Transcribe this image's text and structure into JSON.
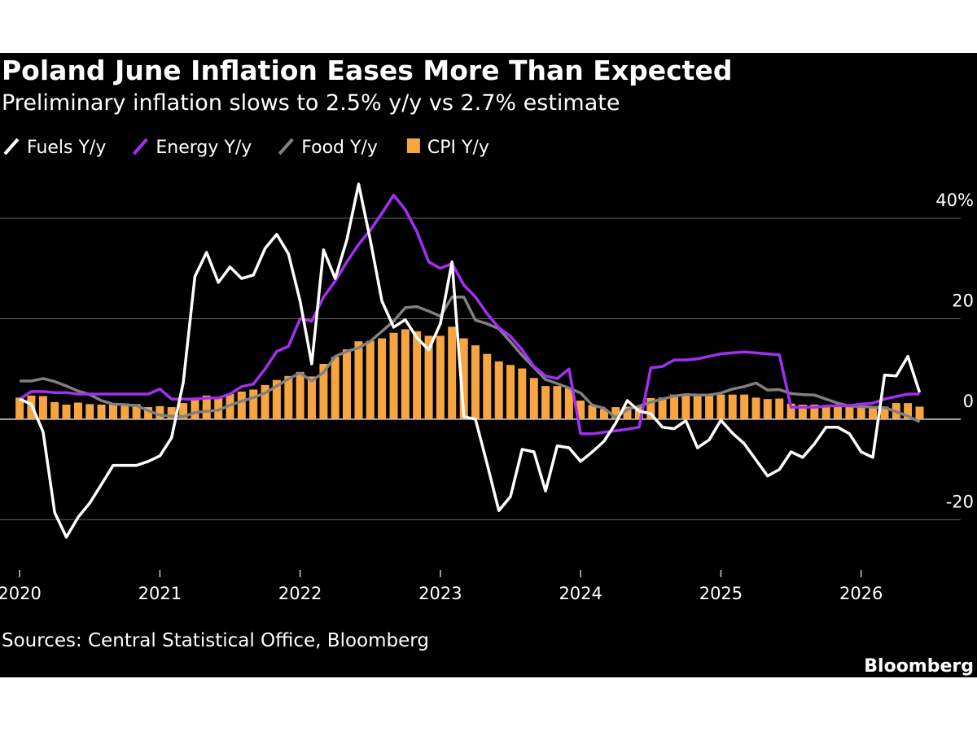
{
  "chart_data": {
    "type": "combo",
    "title": "Poland June Inflation Eases More Than Expected",
    "subtitle": "Preliminary inflation slows to 2.5% y/y vs 2.7% estimate",
    "source": "Sources: Central Statistical Office, Bloomberg",
    "brand": "Bloomberg",
    "x": [
      2020,
      2020.083,
      2020.167,
      2020.25,
      2020.333,
      2020.417,
      2020.5,
      2020.583,
      2020.667,
      2020.75,
      2020.833,
      2020.917,
      2021,
      2021.083,
      2021.167,
      2021.25,
      2021.333,
      2021.417,
      2021.5,
      2021.583,
      2021.667,
      2021.75,
      2021.833,
      2021.917,
      2022,
      2022.083,
      2022.167,
      2022.25,
      2022.333,
      2022.417,
      2022.5,
      2022.583,
      2022.667,
      2022.75,
      2022.833,
      2022.917,
      2023,
      2023.083,
      2023.167,
      2023.25,
      2023.333,
      2023.417,
      2023.5,
      2023.583,
      2023.667,
      2023.75,
      2023.833,
      2023.917,
      2024,
      2024.083,
      2024.167,
      2024.25,
      2024.333,
      2024.417,
      2024.5,
      2024.583,
      2024.667,
      2024.75,
      2024.833,
      2024.917,
      2025,
      2025.083,
      2025.167,
      2025.25,
      2025.333,
      2025.417,
      2025.5,
      2025.583,
      2025.667,
      2025.75,
      2025.833,
      2025.917,
      2026,
      2026.083,
      2026.167,
      2026.25,
      2026.333,
      2026.417
    ],
    "xlim": [
      2019.86,
      2026.71
    ],
    "xticks": [
      2020,
      2021,
      2022,
      2023,
      2024,
      2025,
      2026
    ],
    "ylim": [
      -30,
      46
    ],
    "yticks": [
      -20,
      0,
      20,
      {
        "value": 40,
        "label": "40%"
      }
    ],
    "grid": true,
    "series": [
      {
        "name": "CPI Y/y",
        "type": "bar",
        "color": "#f7a540",
        "values": [
          4.3,
          4.7,
          4.6,
          3.4,
          2.9,
          3.3,
          3.0,
          2.9,
          3.2,
          3.1,
          3.0,
          2.4,
          2.6,
          2.4,
          3.2,
          4.3,
          4.7,
          4.4,
          5.0,
          5.5,
          5.9,
          6.8,
          7.8,
          8.6,
          9.4,
          8.5,
          11.0,
          12.4,
          13.9,
          15.5,
          15.6,
          16.1,
          17.2,
          17.9,
          17.5,
          16.6,
          16.6,
          18.4,
          16.1,
          14.7,
          13.0,
          11.5,
          10.8,
          10.1,
          8.2,
          6.6,
          6.6,
          6.2,
          3.7,
          2.8,
          2.0,
          2.4,
          2.5,
          2.6,
          4.2,
          4.3,
          4.9,
          5.0,
          4.7,
          4.7,
          4.9,
          4.9,
          4.9,
          4.3,
          4.0,
          4.1,
          3.1,
          2.9,
          2.9,
          2.8,
          2.4,
          2.4,
          2.5,
          2.4,
          2.5,
          3.2,
          3.2,
          2.5
        ]
      },
      {
        "name": "Food Y/y",
        "type": "line",
        "color": "#808080",
        "values": [
          7.6,
          7.6,
          8.1,
          7.5,
          6.6,
          5.6,
          4.9,
          3.7,
          3.0,
          2.9,
          2.7,
          1.7,
          0.8,
          0.6,
          0.5,
          1.3,
          1.6,
          1.8,
          2.8,
          3.6,
          4.3,
          5.2,
          6.6,
          8.0,
          9.2,
          7.6,
          9.3,
          12.5,
          13.5,
          14.2,
          15.5,
          17.5,
          19.5,
          22.2,
          22.4,
          21.5,
          20.5,
          24.3,
          24.3,
          19.7,
          19.0,
          18.0,
          15.4,
          12.7,
          10.3,
          7.9,
          7.1,
          6.2,
          5.2,
          2.8,
          2.2,
          0.3,
          1.9,
          2.6,
          3.4,
          4.0,
          4.6,
          4.9,
          4.8,
          4.8,
          5.2,
          6.0,
          6.5,
          7.2,
          5.8,
          5.9,
          5.1,
          4.9,
          4.8,
          4.0,
          3.2,
          2.6,
          2.5,
          2.4,
          2.3,
          1.5,
          0.6,
          -0.5
        ]
      },
      {
        "name": "Energy Y/y",
        "type": "line",
        "color": "#a22ff2",
        "values": [
          4,
          5.5,
          5.5,
          5.3,
          5.3,
          5,
          5,
          5,
          5,
          5,
          5,
          5,
          6,
          4,
          4,
          4,
          4.2,
          4.2,
          5,
          6.5,
          7,
          10,
          13.5,
          14.5,
          20,
          19.5,
          24.3,
          27.5,
          31.3,
          34.8,
          37.6,
          41,
          44.6,
          41.7,
          37.3,
          31.3,
          30,
          31,
          26.7,
          24.3,
          21,
          18.2,
          16.5,
          13.8,
          10.5,
          8.6,
          8.1,
          10,
          -2.9,
          -2.9,
          -2.6,
          -2.3,
          -2,
          -1.6,
          10.2,
          10.5,
          11.8,
          11.8,
          12,
          12.5,
          13,
          13.2,
          13.4,
          13.2,
          13,
          12.8,
          2.4,
          2.4,
          2.4,
          2.6,
          2.7,
          2.7,
          3,
          3.2,
          4,
          4.5,
          5,
          5
        ]
      },
      {
        "name": "Fuels Y/y",
        "type": "line",
        "color": "#ffffff",
        "values": [
          4,
          3,
          -2.5,
          -18.6,
          -23.5,
          -19.5,
          -16.7,
          -13,
          -9.2,
          -9.2,
          -9.2,
          -8.4,
          -7.3,
          -3.7,
          7.3,
          28.4,
          33.2,
          27.2,
          30.3,
          28,
          28.7,
          34,
          36.8,
          32.9,
          23.5,
          11,
          33.7,
          28,
          35.7,
          46.8,
          35.7,
          23.5,
          18.3,
          19.8,
          16.2,
          13.8,
          19,
          31.3,
          0.5,
          0,
          -8.9,
          -18.2,
          -15.4,
          -6,
          -6.5,
          -14.3,
          -5.3,
          -5.7,
          -8.4,
          -6.5,
          -4.4,
          -0.8,
          3.7,
          1.6,
          1.1,
          -1.6,
          -1.9,
          -0.3,
          -5.7,
          -4.1,
          -0.2,
          -2.8,
          -4.9,
          -8.1,
          -11.3,
          -10,
          -6.5,
          -7.6,
          -4.9,
          -1.6,
          -1.6,
          -2.9,
          -6.5,
          -7.6,
          8.8,
          8.6,
          12.5,
          5.3
        ]
      }
    ]
  }
}
